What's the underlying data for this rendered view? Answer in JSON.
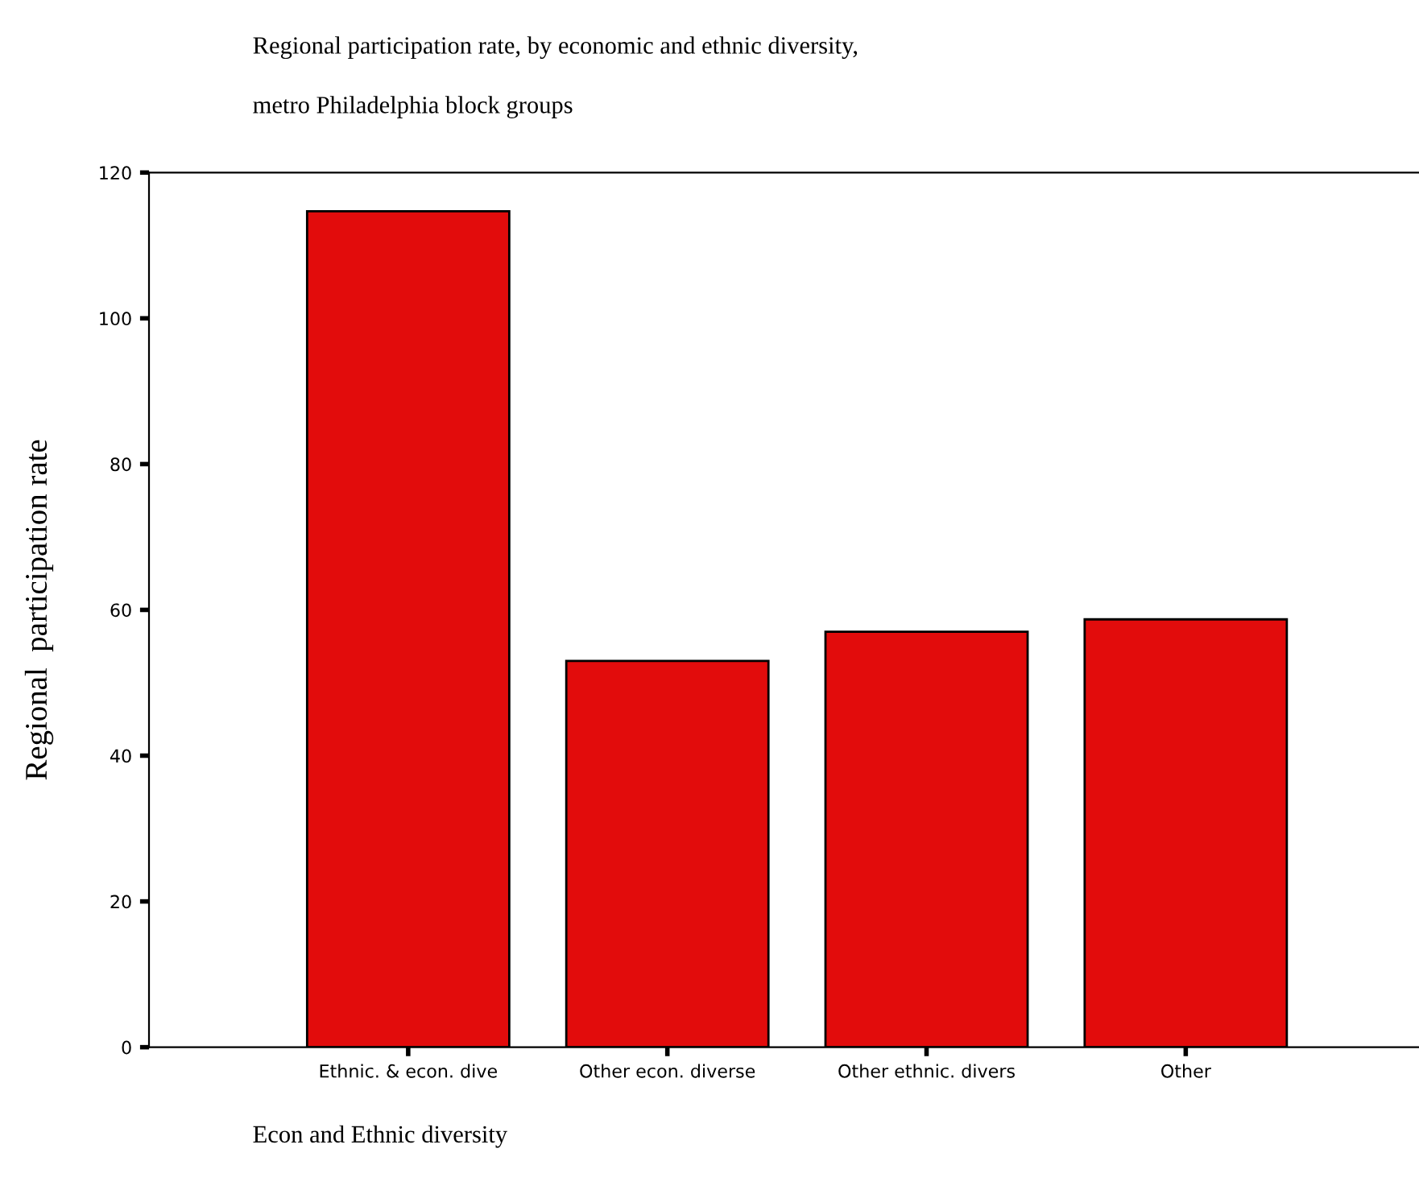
{
  "chart_data": {
    "type": "bar",
    "title": "Regional participation rate, by economic and ethnic diversity,",
    "subtitle": "metro Philadelphia block groups",
    "xlabel": "Econ and Ethnic diversity",
    "ylabel": "Regional  participation rate",
    "categories": [
      "Ethnic. & econ. dive",
      "Other econ. diverse",
      "Other ethnic. divers",
      "Other"
    ],
    "values": [
      114.7,
      53,
      57,
      58.7
    ],
    "color": "#e20c0c",
    "ylim": [
      0,
      120
    ],
    "yticks": [
      0,
      20,
      40,
      60,
      80,
      100,
      120
    ],
    "grid": false
  }
}
